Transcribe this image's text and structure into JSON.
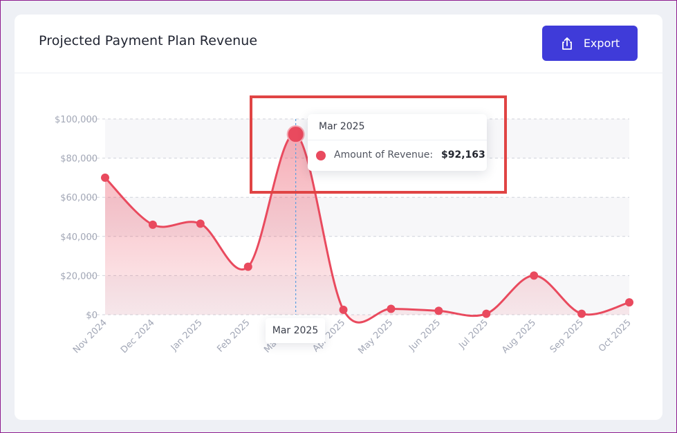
{
  "card": {
    "title": "Projected Payment Plan Revenue",
    "export_label": "Export"
  },
  "colors": {
    "accent": "#3f3bd9",
    "series": "#e94a5e",
    "highlight_box": "#e04444"
  },
  "tooltip": {
    "header": "Mar 2025",
    "series_label": "Amount of Revenue:",
    "value": "$92,163"
  },
  "x_hover_label": "Mar 2025",
  "chart_data": {
    "type": "area",
    "title": "",
    "xlabel": "",
    "ylabel": "",
    "categories": [
      "Nov 2024",
      "Dec 2024",
      "Jan 2025",
      "Feb 2025",
      "Mar 2025",
      "Apr 2025",
      "May 2025",
      "Jun 2025",
      "Jul 2025",
      "Aug 2025",
      "Sep 2025",
      "Oct 2025"
    ],
    "series": [
      {
        "name": "Amount of Revenue",
        "values": [
          70000,
          46000,
          46500,
          24500,
          92163,
          2500,
          3000,
          2000,
          500,
          20000,
          500,
          6300
        ]
      }
    ],
    "ylim": [
      0,
      100000
    ],
    "y_ticks": [
      "$0",
      "$20,000",
      "$40,000",
      "$60,000",
      "$80,000",
      "$100,000"
    ],
    "grid": true,
    "legend": "none",
    "highlighted_category": "Mar 2025"
  }
}
